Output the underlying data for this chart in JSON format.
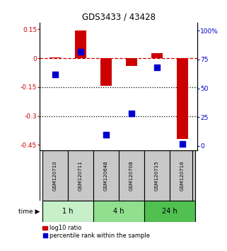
{
  "title": "GDS3433 / 43428",
  "samples": [
    "GSM120710",
    "GSM120711",
    "GSM120648",
    "GSM120708",
    "GSM120715",
    "GSM120716"
  ],
  "groups": [
    {
      "label": "1 h",
      "indices": [
        0,
        1
      ],
      "color": "#c8f0c8"
    },
    {
      "label": "4 h",
      "indices": [
        2,
        3
      ],
      "color": "#90e090"
    },
    {
      "label": "24 h",
      "indices": [
        4,
        5
      ],
      "color": "#50c050"
    }
  ],
  "log10_ratio": [
    0.005,
    0.145,
    -0.145,
    -0.04,
    0.025,
    -0.42
  ],
  "percentile_rank": [
    62,
    82,
    10,
    28,
    68,
    2
  ],
  "ylim_left": [
    -0.48,
    0.185
  ],
  "ylim_right": [
    -4,
    107
  ],
  "yticks_left": [
    -0.45,
    -0.3,
    -0.15,
    0.0,
    0.15
  ],
  "yticks_right": [
    0,
    25,
    50,
    75,
    100
  ],
  "yticklabels_left": [
    "-0.45",
    "-0.3",
    "-0.15",
    "0",
    "0.15"
  ],
  "yticklabels_right": [
    "0",
    "25",
    "50",
    "75",
    "100%"
  ],
  "bar_color": "#cc0000",
  "dot_color": "#0000cc",
  "bar_width": 0.45,
  "dot_size": 28,
  "hline_color": "#cc0000",
  "hline_style": "--",
  "dotted_lines": [
    -0.15,
    -0.3
  ],
  "dotted_color": "black",
  "sample_box_color": "#c8c8c8",
  "legend_bar_label": "log10 ratio",
  "legend_dot_label": "percentile rank within the sample",
  "time_label": "time"
}
